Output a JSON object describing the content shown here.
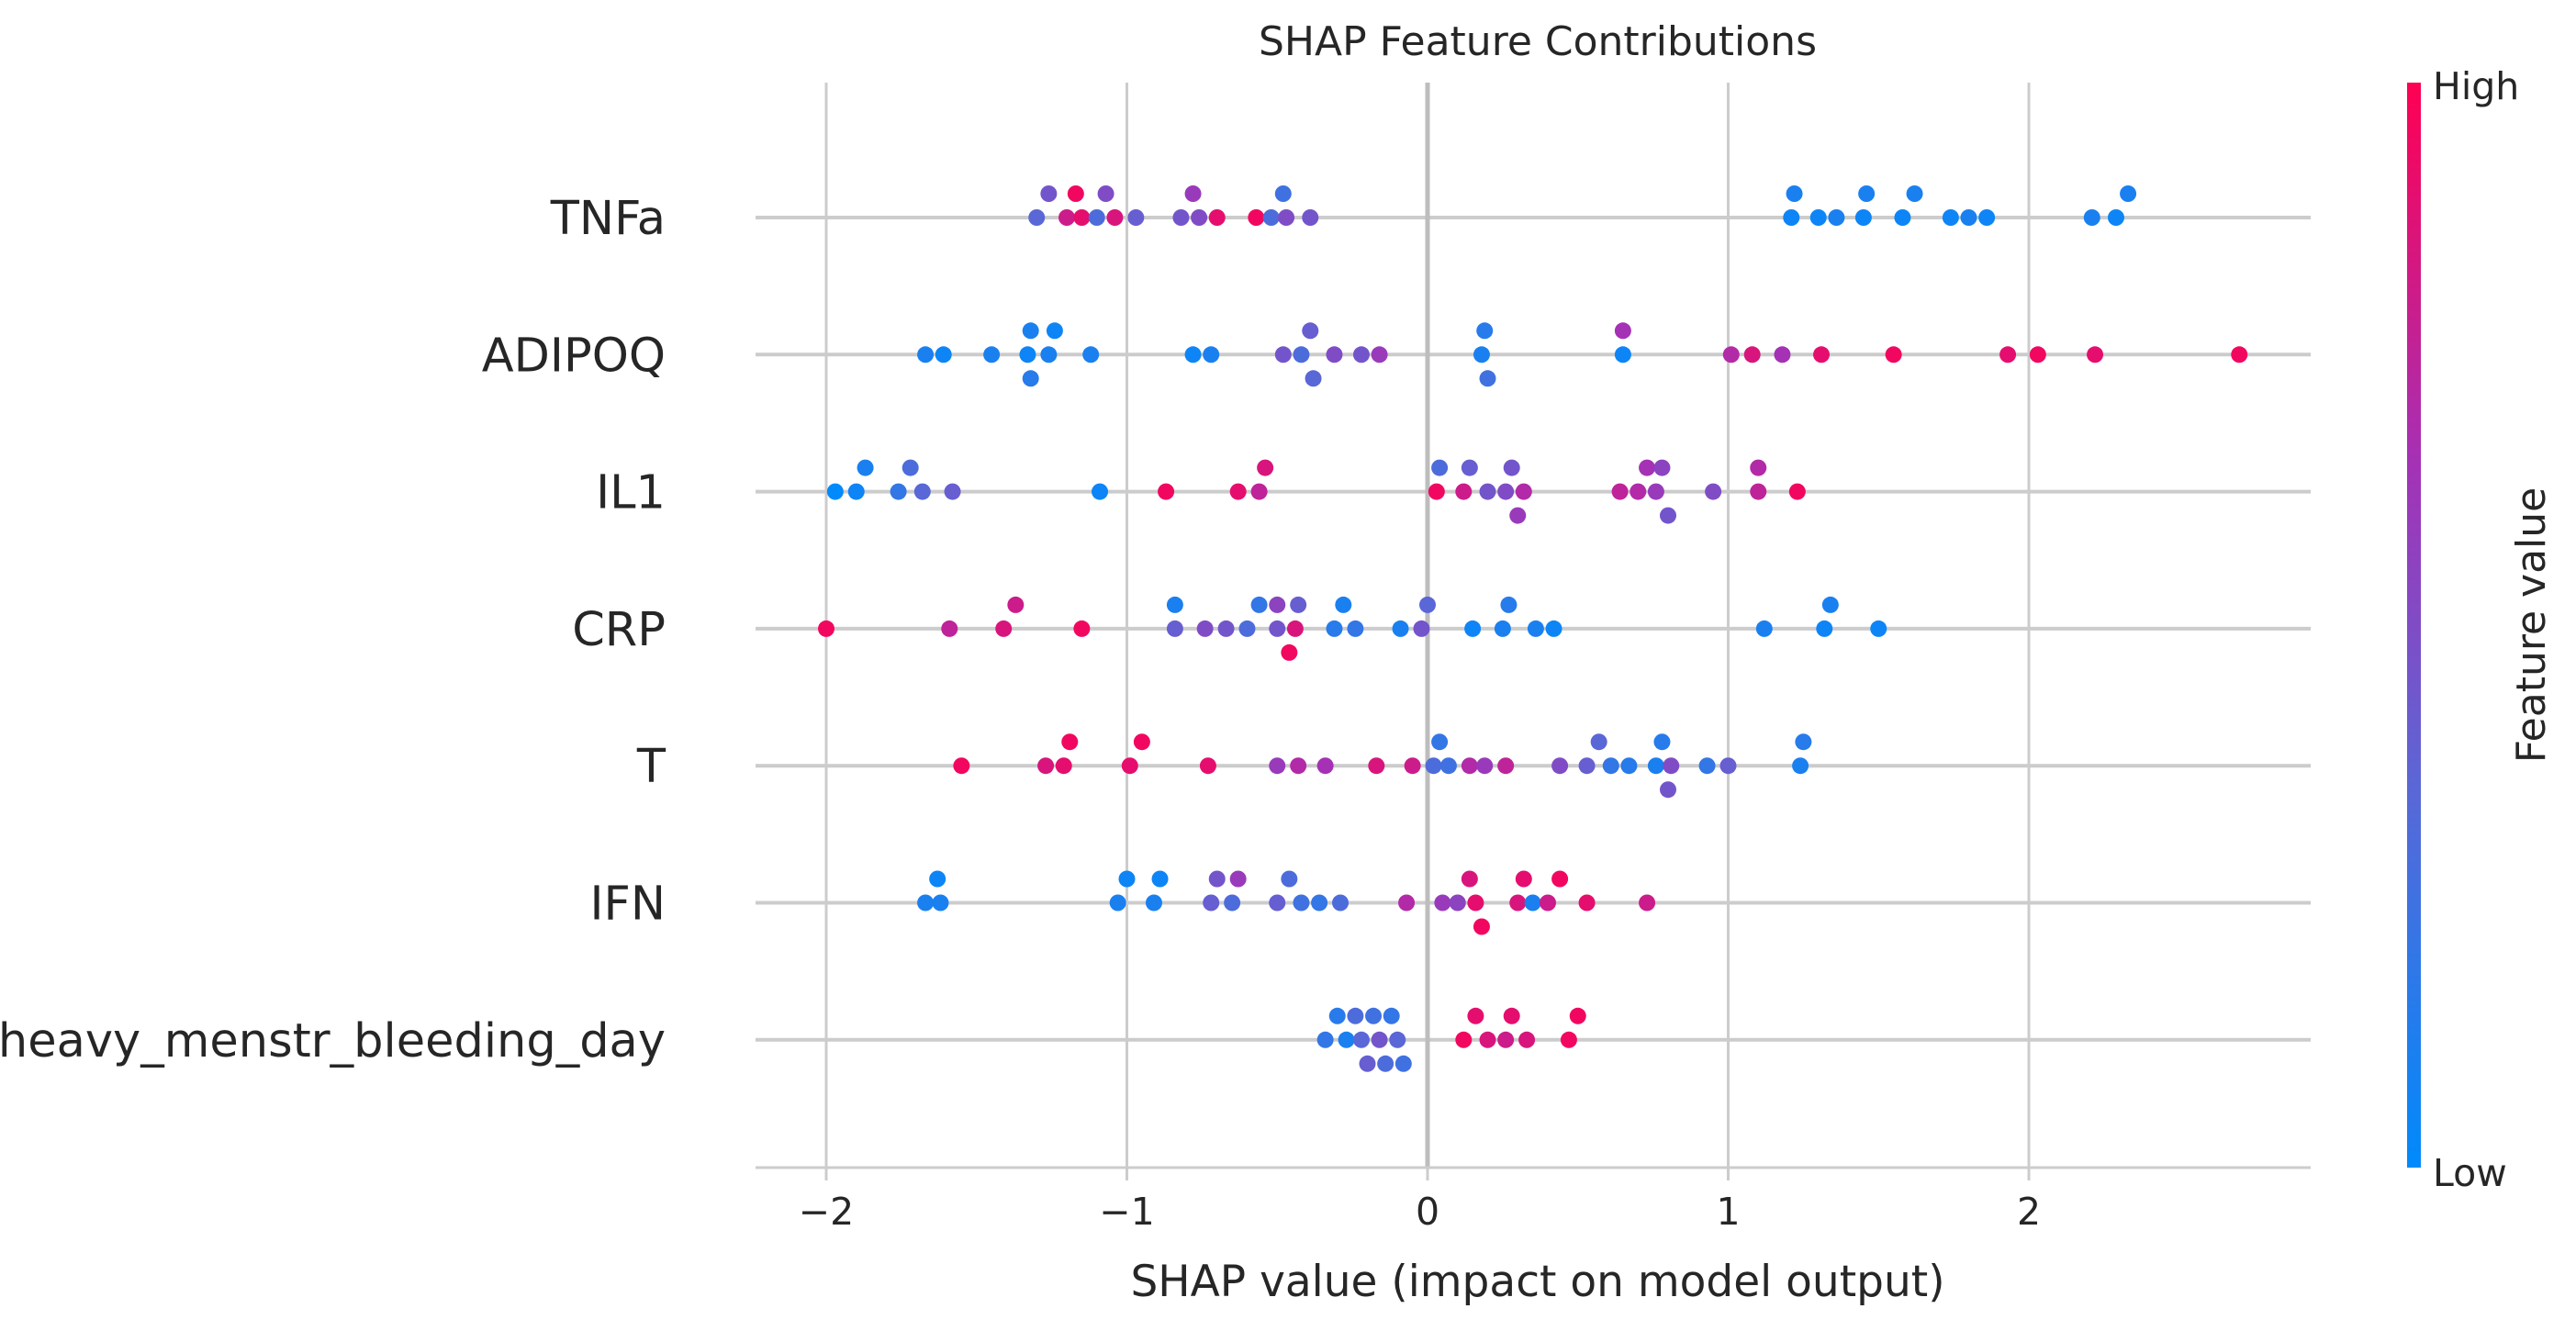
{
  "chart_data": {
    "type": "scatter",
    "title": "SHAP Feature Contributions",
    "xlabel": "SHAP value (impact on model output)",
    "xlim": [
      -2.2,
      2.9
    ],
    "xticks": [
      -2,
      -1,
      0,
      1,
      2
    ],
    "xtick_labels": [
      "−2",
      "−1",
      "0",
      "1",
      "2"
    ],
    "grid": true,
    "legend": {
      "type": "colorbar",
      "placement": "right",
      "title": "Feature value",
      "high_label": "High",
      "low_label": "Low",
      "colors": [
        "#008afb",
        "#5a67d6",
        "#a531b5",
        "#ff0052"
      ]
    },
    "features": [
      {
        "name": "TNFa",
        "points": [
          {
            "x": -1.3,
            "v": 0.35
          },
          {
            "x": -1.26,
            "v": 0.45
          },
          {
            "x": -1.2,
            "v": 0.8
          },
          {
            "x": -1.17,
            "v": 0.95
          },
          {
            "x": -1.15,
            "v": 0.9
          },
          {
            "x": -1.1,
            "v": 0.3
          },
          {
            "x": -1.07,
            "v": 0.5
          },
          {
            "x": -1.04,
            "v": 0.85
          },
          {
            "x": -0.97,
            "v": 0.4
          },
          {
            "x": -0.82,
            "v": 0.45
          },
          {
            "x": -0.78,
            "v": 0.6
          },
          {
            "x": -0.76,
            "v": 0.5
          },
          {
            "x": -0.7,
            "v": 0.9
          },
          {
            "x": -0.57,
            "v": 0.95
          },
          {
            "x": -0.52,
            "v": 0.3
          },
          {
            "x": -0.48,
            "v": 0.25
          },
          {
            "x": -0.47,
            "v": 0.5
          },
          {
            "x": -0.39,
            "v": 0.45
          },
          {
            "x": 1.21,
            "v": 0.05
          },
          {
            "x": 1.22,
            "v": 0.1
          },
          {
            "x": 1.3,
            "v": 0.05
          },
          {
            "x": 1.36,
            "v": 0.1
          },
          {
            "x": 1.45,
            "v": 0.05
          },
          {
            "x": 1.46,
            "v": 0.1
          },
          {
            "x": 1.58,
            "v": 0.05
          },
          {
            "x": 1.62,
            "v": 0.1
          },
          {
            "x": 1.74,
            "v": 0.05
          },
          {
            "x": 1.8,
            "v": 0.1
          },
          {
            "x": 1.86,
            "v": 0.05
          },
          {
            "x": 2.21,
            "v": 0.1
          },
          {
            "x": 2.29,
            "v": 0.05
          },
          {
            "x": 2.33,
            "v": 0.1
          }
        ]
      },
      {
        "name": "ADIPOQ",
        "points": [
          {
            "x": -1.67,
            "v": 0.1
          },
          {
            "x": -1.61,
            "v": 0.05
          },
          {
            "x": -1.45,
            "v": 0.1
          },
          {
            "x": -1.33,
            "v": 0.05
          },
          {
            "x": -1.32,
            "v": 0.1
          },
          {
            "x": -1.32,
            "v": 0.15
          },
          {
            "x": -1.26,
            "v": 0.1
          },
          {
            "x": -1.24,
            "v": 0.05
          },
          {
            "x": -1.12,
            "v": 0.1
          },
          {
            "x": -0.78,
            "v": 0.05
          },
          {
            "x": -0.72,
            "v": 0.1
          },
          {
            "x": -0.48,
            "v": 0.45
          },
          {
            "x": -0.42,
            "v": 0.3
          },
          {
            "x": -0.39,
            "v": 0.4
          },
          {
            "x": -0.38,
            "v": 0.35
          },
          {
            "x": -0.31,
            "v": 0.5
          },
          {
            "x": -0.22,
            "v": 0.45
          },
          {
            "x": -0.16,
            "v": 0.6
          },
          {
            "x": 0.18,
            "v": 0.1
          },
          {
            "x": 0.19,
            "v": 0.15
          },
          {
            "x": 0.2,
            "v": 0.25
          },
          {
            "x": 0.65,
            "v": 0.05
          },
          {
            "x": 0.65,
            "v": 0.65
          },
          {
            "x": 1.01,
            "v": 0.7
          },
          {
            "x": 1.08,
            "v": 0.85
          },
          {
            "x": 1.18,
            "v": 0.65
          },
          {
            "x": 1.31,
            "v": 0.9
          },
          {
            "x": 1.55,
            "v": 0.95
          },
          {
            "x": 1.93,
            "v": 0.9
          },
          {
            "x": 2.03,
            "v": 0.95
          },
          {
            "x": 2.22,
            "v": 0.9
          },
          {
            "x": 2.7,
            "v": 0.95
          }
        ]
      },
      {
        "name": "IL1",
        "points": [
          {
            "x": -1.97,
            "v": 0.0
          },
          {
            "x": -1.9,
            "v": 0.05
          },
          {
            "x": -1.87,
            "v": 0.1
          },
          {
            "x": -1.76,
            "v": 0.2
          },
          {
            "x": -1.72,
            "v": 0.3
          },
          {
            "x": -1.68,
            "v": 0.35
          },
          {
            "x": -1.58,
            "v": 0.4
          },
          {
            "x": -1.09,
            "v": 0.05
          },
          {
            "x": -0.87,
            "v": 0.95
          },
          {
            "x": -0.63,
            "v": 0.9
          },
          {
            "x": -0.56,
            "v": 0.75
          },
          {
            "x": -0.54,
            "v": 0.85
          },
          {
            "x": 0.03,
            "v": 0.95
          },
          {
            "x": 0.04,
            "v": 0.3
          },
          {
            "x": 0.12,
            "v": 0.8
          },
          {
            "x": 0.14,
            "v": 0.4
          },
          {
            "x": 0.2,
            "v": 0.45
          },
          {
            "x": 0.26,
            "v": 0.5
          },
          {
            "x": 0.28,
            "v": 0.45
          },
          {
            "x": 0.3,
            "v": 0.6
          },
          {
            "x": 0.32,
            "v": 0.7
          },
          {
            "x": 0.64,
            "v": 0.75
          },
          {
            "x": 0.7,
            "v": 0.7
          },
          {
            "x": 0.73,
            "v": 0.65
          },
          {
            "x": 0.76,
            "v": 0.6
          },
          {
            "x": 0.78,
            "v": 0.55
          },
          {
            "x": 0.8,
            "v": 0.45
          },
          {
            "x": 0.95,
            "v": 0.5
          },
          {
            "x": 1.1,
            "v": 0.75
          },
          {
            "x": 1.1,
            "v": 0.7
          },
          {
            "x": 1.23,
            "v": 0.95
          }
        ]
      },
      {
        "name": "CRP",
        "points": [
          {
            "x": -2.0,
            "v": 0.95
          },
          {
            "x": -1.59,
            "v": 0.75
          },
          {
            "x": -1.41,
            "v": 0.85
          },
          {
            "x": -1.37,
            "v": 0.8
          },
          {
            "x": -1.15,
            "v": 0.95
          },
          {
            "x": -0.84,
            "v": 0.4
          },
          {
            "x": -0.84,
            "v": 0.1
          },
          {
            "x": -0.74,
            "v": 0.5
          },
          {
            "x": -0.67,
            "v": 0.45
          },
          {
            "x": -0.6,
            "v": 0.3
          },
          {
            "x": -0.56,
            "v": 0.2
          },
          {
            "x": -0.5,
            "v": 0.45
          },
          {
            "x": -0.5,
            "v": 0.55
          },
          {
            "x": -0.46,
            "v": 0.95
          },
          {
            "x": -0.44,
            "v": 0.85
          },
          {
            "x": -0.43,
            "v": 0.4
          },
          {
            "x": -0.31,
            "v": 0.15
          },
          {
            "x": -0.28,
            "v": 0.1
          },
          {
            "x": -0.24,
            "v": 0.2
          },
          {
            "x": -0.09,
            "v": 0.1
          },
          {
            "x": -0.02,
            "v": 0.45
          },
          {
            "x": 0.0,
            "v": 0.35
          },
          {
            "x": 0.15,
            "v": 0.05
          },
          {
            "x": 0.25,
            "v": 0.1
          },
          {
            "x": 0.27,
            "v": 0.15
          },
          {
            "x": 0.36,
            "v": 0.1
          },
          {
            "x": 0.42,
            "v": 0.05
          },
          {
            "x": 1.12,
            "v": 0.1
          },
          {
            "x": 1.32,
            "v": 0.05
          },
          {
            "x": 1.34,
            "v": 0.1
          },
          {
            "x": 1.5,
            "v": 0.05
          }
        ]
      },
      {
        "name": "T",
        "points": [
          {
            "x": -1.55,
            "v": 0.95
          },
          {
            "x": -1.27,
            "v": 0.85
          },
          {
            "x": -1.21,
            "v": 0.9
          },
          {
            "x": -1.19,
            "v": 0.95
          },
          {
            "x": -0.99,
            "v": 0.9
          },
          {
            "x": -0.95,
            "v": 0.95
          },
          {
            "x": -0.73,
            "v": 0.9
          },
          {
            "x": -0.5,
            "v": 0.6
          },
          {
            "x": -0.43,
            "v": 0.7
          },
          {
            "x": -0.34,
            "v": 0.65
          },
          {
            "x": -0.17,
            "v": 0.85
          },
          {
            "x": -0.05,
            "v": 0.8
          },
          {
            "x": 0.02,
            "v": 0.3
          },
          {
            "x": 0.04,
            "v": 0.2
          },
          {
            "x": 0.07,
            "v": 0.25
          },
          {
            "x": 0.14,
            "v": 0.7
          },
          {
            "x": 0.19,
            "v": 0.6
          },
          {
            "x": 0.26,
            "v": 0.75
          },
          {
            "x": 0.44,
            "v": 0.5
          },
          {
            "x": 0.53,
            "v": 0.4
          },
          {
            "x": 0.57,
            "v": 0.35
          },
          {
            "x": 0.61,
            "v": 0.2
          },
          {
            "x": 0.67,
            "v": 0.15
          },
          {
            "x": 0.76,
            "v": 0.1
          },
          {
            "x": 0.78,
            "v": 0.15
          },
          {
            "x": 0.8,
            "v": 0.45
          },
          {
            "x": 0.81,
            "v": 0.5
          },
          {
            "x": 0.93,
            "v": 0.2
          },
          {
            "x": 1.0,
            "v": 0.4
          },
          {
            "x": 1.24,
            "v": 0.1
          },
          {
            "x": 1.25,
            "v": 0.15
          }
        ]
      },
      {
        "name": "IFN",
        "points": [
          {
            "x": -1.67,
            "v": 0.1
          },
          {
            "x": -1.63,
            "v": 0.05
          },
          {
            "x": -1.62,
            "v": 0.1
          },
          {
            "x": -1.03,
            "v": 0.1
          },
          {
            "x": -1.0,
            "v": 0.05
          },
          {
            "x": -0.91,
            "v": 0.1
          },
          {
            "x": -0.89,
            "v": 0.05
          },
          {
            "x": -0.72,
            "v": 0.4
          },
          {
            "x": -0.7,
            "v": 0.45
          },
          {
            "x": -0.65,
            "v": 0.3
          },
          {
            "x": -0.63,
            "v": 0.6
          },
          {
            "x": -0.5,
            "v": 0.4
          },
          {
            "x": -0.46,
            "v": 0.3
          },
          {
            "x": -0.42,
            "v": 0.25
          },
          {
            "x": -0.36,
            "v": 0.2
          },
          {
            "x": -0.29,
            "v": 0.3
          },
          {
            "x": -0.07,
            "v": 0.7
          },
          {
            "x": 0.05,
            "v": 0.6
          },
          {
            "x": 0.1,
            "v": 0.55
          },
          {
            "x": 0.14,
            "v": 0.85
          },
          {
            "x": 0.16,
            "v": 0.9
          },
          {
            "x": 0.18,
            "v": 0.95
          },
          {
            "x": 0.3,
            "v": 0.85
          },
          {
            "x": 0.32,
            "v": 0.9
          },
          {
            "x": 0.35,
            "v": 0.1
          },
          {
            "x": 0.4,
            "v": 0.8
          },
          {
            "x": 0.44,
            "v": 0.95
          },
          {
            "x": 0.53,
            "v": 0.9
          },
          {
            "x": 0.73,
            "v": 0.8
          }
        ]
      },
      {
        "name": "heavy_menstr_bleeding_day",
        "points": [
          {
            "x": -0.34,
            "v": 0.2
          },
          {
            "x": -0.3,
            "v": 0.15
          },
          {
            "x": -0.27,
            "v": 0.1
          },
          {
            "x": -0.24,
            "v": 0.3
          },
          {
            "x": -0.22,
            "v": 0.35
          },
          {
            "x": -0.2,
            "v": 0.4
          },
          {
            "x": -0.18,
            "v": 0.25
          },
          {
            "x": -0.16,
            "v": 0.45
          },
          {
            "x": -0.14,
            "v": 0.3
          },
          {
            "x": -0.12,
            "v": 0.2
          },
          {
            "x": -0.1,
            "v": 0.35
          },
          {
            "x": -0.08,
            "v": 0.25
          },
          {
            "x": 0.12,
            "v": 0.95
          },
          {
            "x": 0.16,
            "v": 0.9
          },
          {
            "x": 0.2,
            "v": 0.85
          },
          {
            "x": 0.26,
            "v": 0.8
          },
          {
            "x": 0.28,
            "v": 0.9
          },
          {
            "x": 0.33,
            "v": 0.85
          },
          {
            "x": 0.47,
            "v": 0.95
          },
          {
            "x": 0.5,
            "v": 0.95
          }
        ]
      }
    ]
  }
}
